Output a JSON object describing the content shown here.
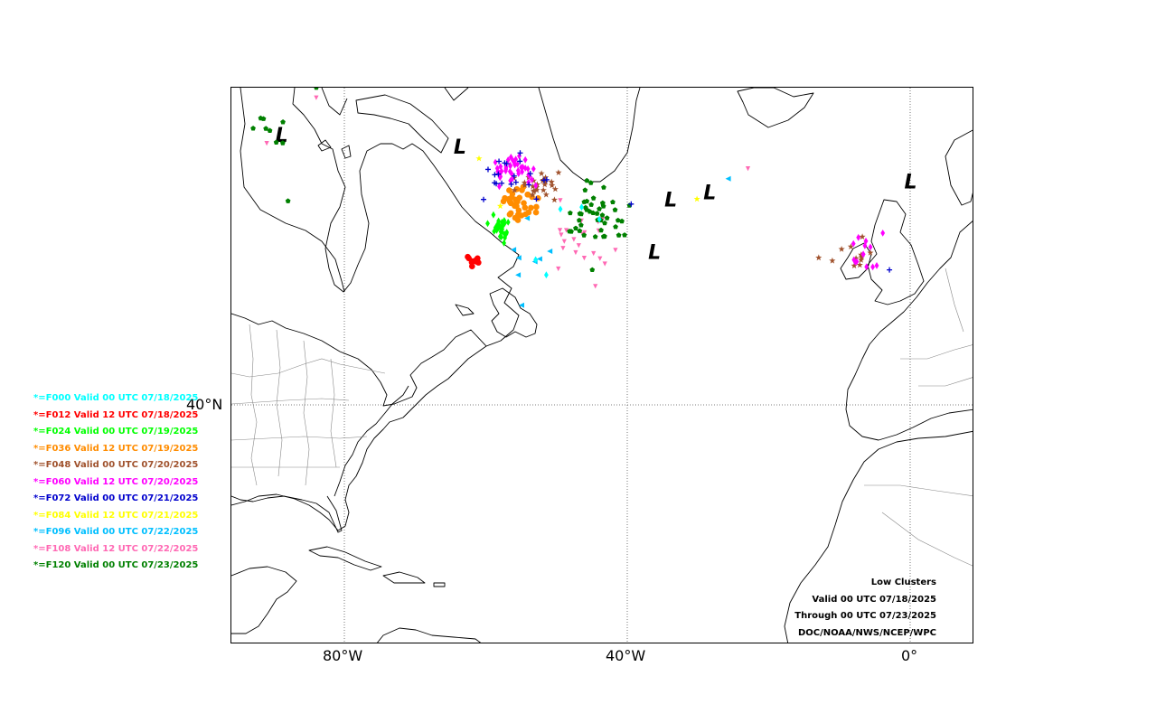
{
  "axis": {
    "x_ticks": [
      "80°W",
      "40°W",
      "0°"
    ],
    "y_ticks": [
      "40°N"
    ]
  },
  "low_marker": "L",
  "legend": [
    {
      "text": "*=F000 Valid 00 UTC 07/18/2025",
      "color": "#00ffff"
    },
    {
      "text": "*=F012 Valid 12 UTC 07/18/2025",
      "color": "#ff0000"
    },
    {
      "text": "*=F024 Valid 00 UTC 07/19/2025",
      "color": "#00ff00"
    },
    {
      "text": "*=F036 Valid 12 UTC 07/19/2025",
      "color": "#ff8c00"
    },
    {
      "text": "*=F048 Valid 00 UTC 07/20/2025",
      "color": "#a0522d"
    },
    {
      "text": "*=F060 Valid 12 UTC 07/20/2025",
      "color": "#ff00ff"
    },
    {
      "text": "*=F072 Valid 00 UTC 07/21/2025",
      "color": "#0000cd"
    },
    {
      "text": "*=F084 Valid 12 UTC 07/21/2025",
      "color": "#ffff00"
    },
    {
      "text": "*=F096 Valid 00 UTC 07/22/2025",
      "color": "#00bfff"
    },
    {
      "text": "*=F108 Valid 12 UTC 07/22/2025",
      "color": "#ff69b4"
    },
    {
      "text": "*=F120 Valid 00 UTC 07/23/2025",
      "color": "#008000"
    }
  ],
  "credits": [
    "Low Clusters",
    "Valid 00 UTC 07/18/2025",
    "Through 00 UTC 07/23/2025",
    "DOC/NOAA/NWS/NCEP/WPC"
  ],
  "map": {
    "extent": {
      "lon": [
        -96,
        9
      ],
      "lat": [
        15,
        70
      ]
    },
    "lows": [
      {
        "lon": -88.9,
        "lat": 65.2
      },
      {
        "lon": -63.7,
        "lat": 64.0
      },
      {
        "lon": -33.9,
        "lat": 58.8
      },
      {
        "lon": -28.4,
        "lat": 59.5
      },
      {
        "lon": -36.2,
        "lat": 53.6
      },
      {
        "lon": 0.0,
        "lat": 60.6
      }
    ],
    "clusters": [
      {
        "series": 1,
        "shape": "circle",
        "lon": -61.8,
        "lat": 52.9,
        "slon": 1.2,
        "slat": 0.7,
        "n": 10
      },
      {
        "series": 2,
        "shape": "diamond",
        "lon": -58.0,
        "lat": 56.0,
        "slon": 1.4,
        "slat": 1.3,
        "n": 30
      },
      {
        "series": 3,
        "shape": "circle",
        "lon": -55.3,
        "lat": 58.5,
        "slon": 2.4,
        "slat": 1.6,
        "n": 36
      },
      {
        "series": 4,
        "shape": "star",
        "lon": -52.5,
        "lat": 60.5,
        "slon": 3.4,
        "slat": 1.3,
        "n": 26
      },
      {
        "series": 4,
        "shape": "star",
        "lon": -7.8,
        "lat": 53.6,
        "slon": 2.6,
        "slat": 1.4,
        "n": 12
      },
      {
        "series": 5,
        "shape": "diamond",
        "lon": -56.0,
        "lat": 61.8,
        "slon": 4.0,
        "slat": 1.4,
        "n": 40
      },
      {
        "series": 5,
        "shape": "diamond",
        "lon": -5.5,
        "lat": 53.5,
        "slon": 3.0,
        "slat": 1.8,
        "n": 14
      },
      {
        "series": 6,
        "shape": "plus",
        "lon": -56.5,
        "lat": 61.0,
        "slon": 5.0,
        "slat": 2.6,
        "n": 20
      },
      {
        "series": 8,
        "shape": "triangle",
        "lon": -52.5,
        "lat": 53.5,
        "slon": 3.0,
        "slat": 4.0,
        "n": 6
      },
      {
        "series": 9,
        "shape": "tri-down",
        "lon": -46.0,
        "lat": 54.5,
        "slon": 5.0,
        "slat": 3.5,
        "n": 22
      },
      {
        "series": 10,
        "shape": "pentagon",
        "lon": -44.5,
        "lat": 57.5,
        "slon": 5.0,
        "slat": 3.0,
        "n": 44
      },
      {
        "series": 10,
        "shape": "pentagon",
        "lon": -91.0,
        "lat": 66.0,
        "slon": 2.2,
        "slat": 1.5,
        "n": 8
      }
    ],
    "points": [
      {
        "series": 0,
        "shape": "diamond",
        "lon": -49.5,
        "lat": 58.0
      },
      {
        "series": 0,
        "shape": "diamond",
        "lon": -46.5,
        "lat": 58.2
      },
      {
        "series": 0,
        "shape": "diamond",
        "lon": -53.0,
        "lat": 53.0
      },
      {
        "series": 0,
        "shape": "diamond",
        "lon": -51.5,
        "lat": 51.5
      },
      {
        "series": 0,
        "shape": "diamond",
        "lon": -44.0,
        "lat": 57.0
      },
      {
        "series": 7,
        "shape": "star",
        "lon": -61.0,
        "lat": 63.0
      },
      {
        "series": 7,
        "shape": "star",
        "lon": -58.0,
        "lat": 58.3
      },
      {
        "series": 7,
        "shape": "star",
        "lon": -30.2,
        "lat": 59.0
      },
      {
        "series": 8,
        "shape": "triangle",
        "lon": -25.8,
        "lat": 61.0
      },
      {
        "series": 8,
        "shape": "triangle",
        "lon": -55.0,
        "lat": 48.5
      },
      {
        "series": 8,
        "shape": "triangle",
        "lon": -55.5,
        "lat": 51.5
      },
      {
        "series": 9,
        "shape": "tri-down",
        "lon": -23.0,
        "lat": 62.0
      },
      {
        "series": 9,
        "shape": "tri-down",
        "lon": -84.0,
        "lat": 69.0
      },
      {
        "series": 9,
        "shape": "tri-down",
        "lon": -91.0,
        "lat": 64.5
      },
      {
        "series": 6,
        "shape": "plus",
        "lon": -39.5,
        "lat": 58.5
      },
      {
        "series": 6,
        "shape": "plus",
        "lon": -3.0,
        "lat": 52.0
      },
      {
        "series": 10,
        "shape": "pentagon",
        "lon": -88.0,
        "lat": 58.8
      },
      {
        "series": 10,
        "shape": "pentagon",
        "lon": -84.0,
        "lat": 70.0
      },
      {
        "series": 10,
        "shape": "pentagon",
        "lon": -45.0,
        "lat": 52.0
      },
      {
        "series": 4,
        "shape": "star",
        "lon": -13.0,
        "lat": 53.2
      }
    ]
  }
}
